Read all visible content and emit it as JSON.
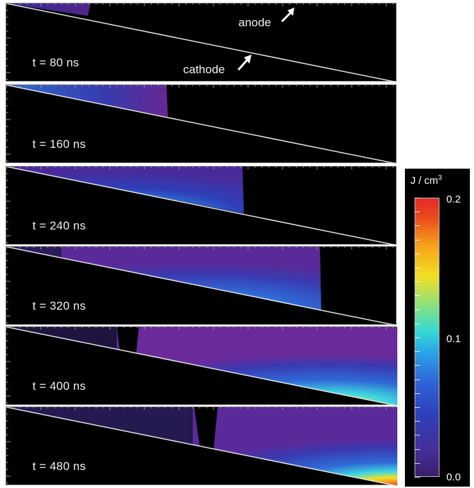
{
  "panels": [
    {
      "time_label": "t = 80 ns"
    },
    {
      "time_label": "t = 160 ns"
    },
    {
      "time_label": "t = 240 ns"
    },
    {
      "time_label": "t = 320 ns"
    },
    {
      "time_label": "t = 400 ns"
    },
    {
      "time_label": "t = 480 ns"
    }
  ],
  "annotations": {
    "anode": "anode",
    "cathode": "cathode"
  },
  "colorbar": {
    "unit_base": "J / cm",
    "unit_exp": "3",
    "ticks": [
      "0.2",
      "0.1",
      "0.0"
    ],
    "range": [
      0.0,
      0.2
    ],
    "colors": [
      "#3a1e6e",
      "#2e3fb8",
      "#2aa6e8",
      "#8fe07a",
      "#f2e024",
      "#ea4a1c",
      "#e52a2a"
    ]
  }
}
